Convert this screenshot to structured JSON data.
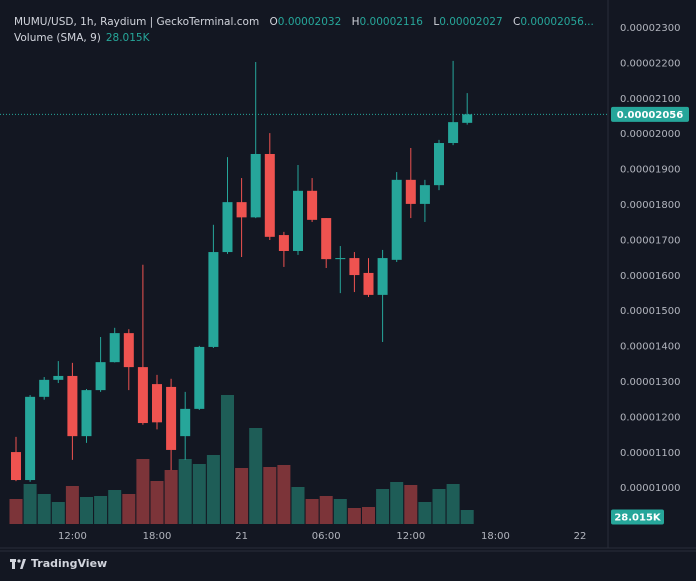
{
  "chart_data": {
    "type": "candlestick",
    "title": "MUMU/USD, 1h, Raydium | GeckoTerminal.com",
    "ohlc_keys": [
      "O",
      "H",
      "L",
      "C"
    ],
    "volume_title": "Volume (SMA, 9)",
    "brand": "TradingView",
    "categories": [
      null,
      null,
      null,
      null,
      "12:00",
      null,
      null,
      null,
      null,
      null,
      "18:00",
      null,
      null,
      null,
      null,
      null,
      "21",
      null,
      null,
      null,
      null,
      null,
      "06:00",
      null,
      null,
      null,
      null,
      null,
      "12:00",
      null,
      null,
      null,
      null,
      null,
      "18:00",
      null,
      null,
      null,
      null,
      null,
      "22"
    ],
    "open": [
      1.102e-05,
      1.023e-05,
      1.258e-05,
      1.306e-05,
      1.317e-05,
      1.147e-05,
      1.277e-05,
      1.356e-05,
      1.438e-05,
      1.342e-05,
      1.294e-05,
      1.286e-05,
      1.147e-05,
      1.224e-05,
      1.399e-05,
      1.667e-05,
      1.808e-05,
      1.765e-05,
      1.944e-05,
      1.715e-05,
      1.67e-05,
      1.84e-05,
      1.763e-05,
      1.647e-05,
      1.65e-05,
      1.608e-05,
      1.546e-05,
      1.645e-05,
      1.871e-05,
      1.803e-05,
      1.856e-05,
      1.975e-05,
      2.032e-05,
      null,
      null,
      null,
      null,
      null,
      null,
      null,
      null
    ],
    "high": [
      1.145e-05,
      1.263e-05,
      1.314e-05,
      1.359e-05,
      1.354e-05,
      1.28e-05,
      1.427e-05,
      1.453e-05,
      1.449e-05,
      1.631e-05,
      1.32e-05,
      1.309e-05,
      1.272e-05,
      1.402e-05,
      1.744e-05,
      1.935e-05,
      1.876e-05,
      2.204e-05,
      2.003e-05,
      1.724e-05,
      1.913e-05,
      1.876e-05,
      1.763e-05,
      1.684e-05,
      1.667e-05,
      1.65e-05,
      1.673e-05,
      1.893e-05,
      1.961e-05,
      1.871e-05,
      1.984e-05,
      2.207e-05,
      2.116e-05,
      null,
      null,
      null,
      null,
      null,
      null,
      null,
      null
    ],
    "low": [
      1.02e-05,
      1.018e-05,
      1.25e-05,
      1.297e-05,
      1.08e-05,
      1.128e-05,
      1.272e-05,
      1.355e-05,
      1.277e-05,
      1.179e-05,
      1.166e-05,
      1.051e-05,
      1.08e-05,
      1.221e-05,
      1.396e-05,
      1.662e-05,
      1.653e-05,
      1.763e-05,
      1.701e-05,
      1.625e-05,
      1.659e-05,
      1.752e-05,
      1.622e-05,
      1.551e-05,
      1.554e-05,
      1.54e-05,
      1.413e-05,
      1.639e-05,
      1.763e-05,
      1.752e-05,
      1.842e-05,
      1.969e-05,
      2.027e-05,
      null,
      null,
      null,
      null,
      null,
      null,
      null,
      null
    ],
    "close": [
      1.023e-05,
      1.258e-05,
      1.306e-05,
      1.317e-05,
      1.147e-05,
      1.277e-05,
      1.356e-05,
      1.438e-05,
      1.342e-05,
      1.184e-05,
      1.186e-05,
      1.108e-05,
      1.224e-05,
      1.399e-05,
      1.667e-05,
      1.808e-05,
      1.765e-05,
      1.944e-05,
      1.71e-05,
      1.67e-05,
      1.84e-05,
      1.758e-05,
      1.647e-05,
      1.65e-05,
      1.602e-05,
      1.546e-05,
      1.65e-05,
      1.871e-05,
      1.803e-05,
      1.856e-05,
      1.975e-05,
      2.034e-05,
      2.056e-05,
      null,
      null,
      null,
      null,
      null,
      null,
      null,
      null
    ],
    "volume": [
      50000,
      80000,
      60000,
      44000,
      76000,
      54000,
      56000,
      68000,
      60000,
      130000,
      86000,
      108000,
      130000,
      120000,
      138000,
      258000,
      112000,
      192000,
      114000,
      118000,
      74000,
      50000,
      56000,
      50000,
      32000,
      34000,
      70000,
      84000,
      78000,
      44000,
      70000,
      80000,
      28015,
      null,
      null,
      null,
      null,
      null,
      null,
      null,
      null
    ],
    "volume_value_labels": [
      null,
      null,
      null,
      null,
      null,
      null,
      null,
      null,
      null,
      null,
      null,
      null,
      null,
      null,
      null,
      null,
      null,
      null,
      null,
      null,
      null,
      null,
      null,
      null,
      null,
      null,
      null,
      null,
      null,
      null,
      null,
      null,
      "28.015K",
      null,
      null,
      null,
      null,
      null,
      null,
      null,
      null
    ],
    "ylim": [
      8.31e-06,
      2.379e-05
    ],
    "yticks": [
      {
        "value": 1e-05,
        "label": "0.00001000"
      },
      {
        "value": 1.1e-05,
        "label": "0.00001100"
      },
      {
        "value": 1.2e-05,
        "label": "0.00001200"
      },
      {
        "value": 1.3e-05,
        "label": "0.00001300"
      },
      {
        "value": 1.4e-05,
        "label": "0.00001400"
      },
      {
        "value": 1.5e-05,
        "label": "0.00001500"
      },
      {
        "value": 1.6e-05,
        "label": "0.00001600"
      },
      {
        "value": 1.7e-05,
        "label": "0.00001700"
      },
      {
        "value": 1.8e-05,
        "label": "0.00001800"
      },
      {
        "value": 1.9e-05,
        "label": "0.00001900"
      },
      {
        "value": 2e-05,
        "label": "0.00002000"
      },
      {
        "value": 2.1e-05,
        "label": "0.00002100"
      },
      {
        "value": 2.2e-05,
        "label": "0.00002200"
      },
      {
        "value": 2.3e-05,
        "label": "0.00002300"
      }
    ],
    "grid": true,
    "up_color": "#26a69a",
    "down_color": "#ef5350",
    "volume_up_color": "#1e5d57",
    "volume_down_color": "#7c3439"
  }
}
